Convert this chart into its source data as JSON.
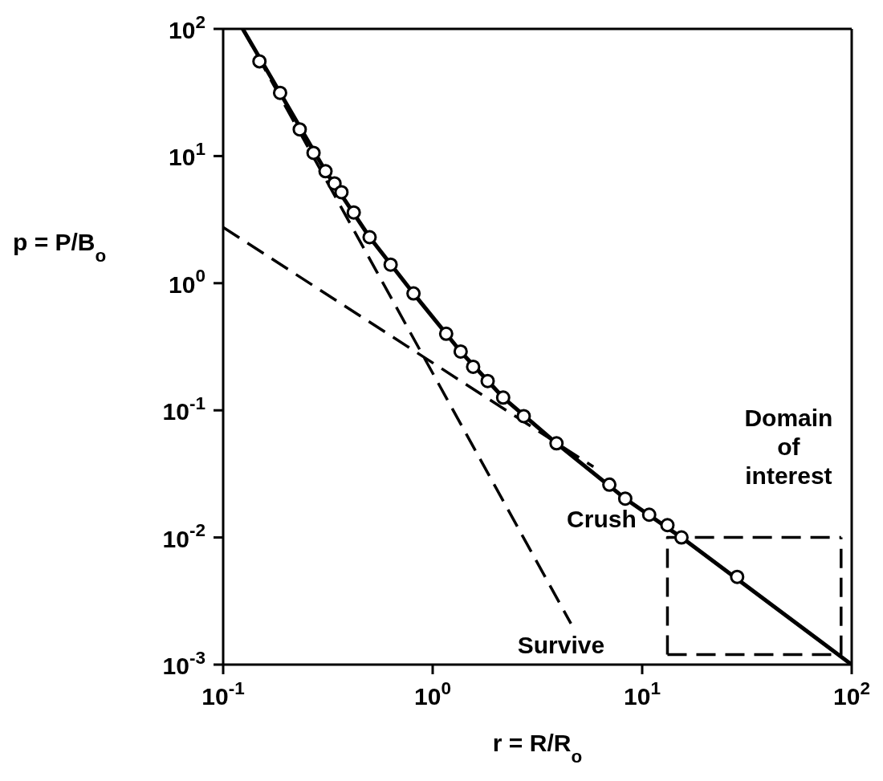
{
  "chart_data": {
    "type": "scatter",
    "xlabel": "r = R/R$_{o}$",
    "ylabel": "p = P/B$_{o}$",
    "log": "xy",
    "legend": false,
    "xlim": [
      0.1,
      100
    ],
    "ylim": [
      0.001,
      100
    ],
    "xticks": [
      {
        "value": 0.1,
        "label": "10$^{-1}$"
      },
      {
        "value": 1,
        "label": "10$^{0}$"
      },
      {
        "value": 10,
        "label": "10$^{1}$"
      },
      {
        "value": 100,
        "label": "10$^{2}$"
      }
    ],
    "yticks": [
      {
        "value": 0.001,
        "label": "10$^{-3}$"
      },
      {
        "value": 0.01,
        "label": "10$^{-2}$"
      },
      {
        "value": 0.1,
        "label": "10$^{-1}$"
      },
      {
        "value": 1,
        "label": "10$^{0}$"
      },
      {
        "value": 10,
        "label": "10$^{1}$"
      },
      {
        "value": 100,
        "label": "10$^{2}$"
      }
    ],
    "series": [
      {
        "type": "line",
        "line_style": "solid",
        "marker": "none",
        "color": "#000000",
        "x": [
          0.124,
          0.187,
          0.308,
          0.5,
          0.81,
          1.36,
          2.17,
          3.9,
          8.3,
          15.4,
          100
        ],
        "values": [
          100,
          31.4,
          7.6,
          2.3,
          0.83,
          0.29,
          0.126,
          0.055,
          0.0202,
          0.01,
          0.001
        ]
      },
      {
        "type": "line",
        "line_style": "dashed",
        "marker": "none",
        "color": "#000000",
        "x": [
          0.1,
          5.85
        ],
        "values": [
          2.75,
          0.036
        ]
      },
      {
        "type": "line",
        "line_style": "dashed",
        "marker": "none",
        "color": "#000000",
        "x": [
          0.124,
          4.57
        ],
        "values": [
          100,
          0.0021
        ]
      },
      {
        "type": "line",
        "line_style": "dashed",
        "marker": "none",
        "color": "#000000",
        "x": [
          13.2,
          13.2,
          89
        ],
        "values": [
          0.0012,
          0.01,
          0.01
        ]
      },
      {
        "type": "line",
        "line_style": "dashed",
        "marker": "none",
        "color": "#000000",
        "x": [
          13.2,
          89,
          89
        ],
        "values": [
          0.0012,
          0.0012,
          0.01
        ]
      },
      {
        "marker": "circle",
        "color": "#000000",
        "x": [
          0.149,
          0.187,
          0.232,
          0.27,
          0.308,
          0.34,
          0.367,
          0.42,
          0.5,
          0.63,
          0.81,
          1.16,
          1.36,
          1.56,
          1.83,
          2.17,
          2.72,
          3.9,
          6.97,
          8.3,
          10.8,
          13.2,
          15.4,
          28.4
        ],
        "values": [
          55.6,
          31.4,
          16.2,
          10.6,
          7.6,
          6.1,
          5.2,
          3.6,
          2.3,
          1.4,
          0.83,
          0.4,
          0.29,
          0.22,
          0.17,
          0.126,
          0.09,
          0.055,
          0.026,
          0.0202,
          0.0151,
          0.0125,
          0.01,
          0.0049
        ]
      }
    ],
    "annotations": [
      "Domain of interest",
      "Crush",
      "Survive"
    ]
  }
}
